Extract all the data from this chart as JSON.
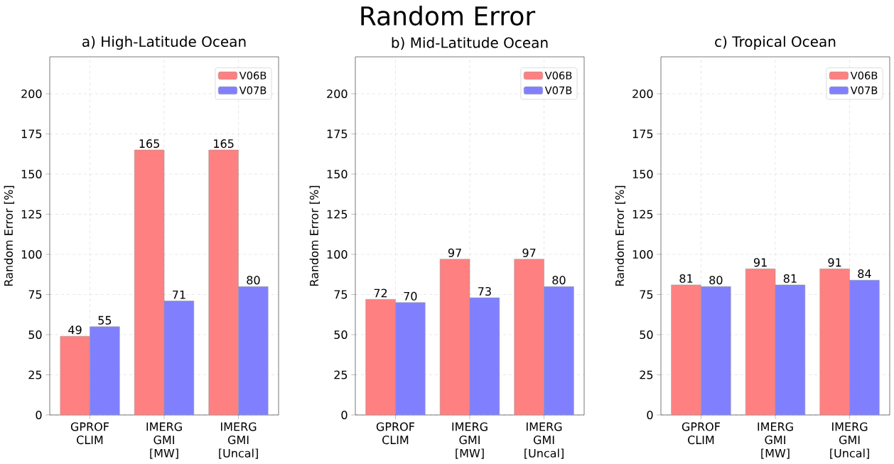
{
  "chart_data": [
    {
      "type": "bar",
      "title": "a) High-Latitude Ocean",
      "ylabel": "Random Error [%]",
      "annotations": [
        "Random Error"
      ],
      "categories": [
        "GPROF CLIM",
        "IMERG GMI [MW]",
        "IMERG GMI [Uncal]"
      ],
      "series": [
        {
          "name": "V06B",
          "color": "#ff8080",
          "values": [
            49,
            165,
            165
          ]
        },
        {
          "name": "V07B",
          "color": "#8080ff",
          "values": [
            55,
            71,
            80
          ]
        }
      ],
      "ylim": [
        0,
        223
      ],
      "yticks": [
        0,
        25,
        50,
        75,
        100,
        125,
        150,
        175,
        200
      ],
      "grid": true,
      "legend": "top right",
      "data_labels": true
    },
    {
      "type": "bar",
      "title": "b) Mid-Latitude Ocean",
      "ylabel": "Random Error [%]",
      "categories": [
        "GPROF CLIM",
        "IMERG GMI [MW]",
        "IMERG GMI [Uncal]"
      ],
      "series": [
        {
          "name": "V06B",
          "color": "#ff8080",
          "values": [
            72,
            97,
            97
          ]
        },
        {
          "name": "V07B",
          "color": "#8080ff",
          "values": [
            70,
            73,
            80
          ]
        }
      ],
      "ylim": [
        0,
        223
      ],
      "yticks": [
        0,
        25,
        50,
        75,
        100,
        125,
        150,
        175,
        200
      ],
      "grid": true,
      "legend": "top right",
      "data_labels": true
    },
    {
      "type": "bar",
      "title": "c) Tropical Ocean",
      "ylabel": "Random Error [%]",
      "categories": [
        "GPROF CLIM",
        "IMERG GMI [MW]",
        "IMERG GMI [Uncal]"
      ],
      "series": [
        {
          "name": "V06B",
          "color": "#ff8080",
          "values": [
            81,
            91,
            91
          ]
        },
        {
          "name": "V07B",
          "color": "#8080ff",
          "values": [
            80,
            81,
            84
          ]
        }
      ],
      "ylim": [
        0,
        223
      ],
      "yticks": [
        0,
        25,
        50,
        75,
        100,
        125,
        150,
        175,
        200
      ],
      "grid": true,
      "legend": "top right",
      "data_labels": true
    }
  ]
}
